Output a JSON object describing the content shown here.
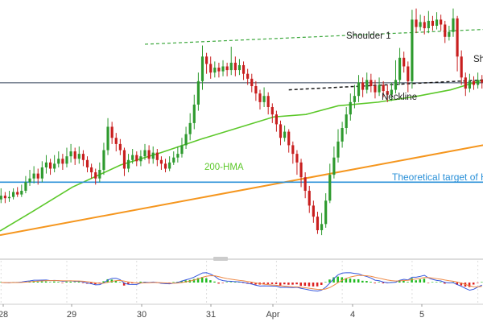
{
  "chart_data": {
    "type": "candlestick",
    "price_scale": {
      "min": 0,
      "max": 10
    },
    "x_labels": [
      "28",
      "29",
      "30",
      "31",
      "Apr",
      "4",
      "5"
    ],
    "annotations": {
      "shoulder1": "Shoulder 1",
      "shoulder2_partial": "Sh",
      "neckline": "Neckline",
      "hma_label": "200-HMA",
      "target_label": "Theoretical target of H"
    },
    "colors": {
      "up": "#2e9a2e",
      "down": "#c81e1e",
      "hma": "#5cc82a",
      "orange_trend": "#f5961e",
      "target_line": "#2a90d8",
      "neckline": "#1a1a1a",
      "shoulder_line": "#3da83d",
      "macd_line": "#3355dd",
      "signal_line": "#ee8844",
      "hist_pos": "#22bb22",
      "hist_neg": "#dd2222",
      "axis_text": "#444444",
      "grid": "#dddddd"
    },
    "candles": [
      [
        2.1,
        2.25,
        2.55,
        1.95
      ],
      [
        2.25,
        2.15,
        2.4,
        1.95
      ],
      [
        2.15,
        2.2,
        2.45,
        2.0
      ],
      [
        2.2,
        2.4,
        2.55,
        2.1
      ],
      [
        2.4,
        2.3,
        2.6,
        2.2
      ],
      [
        2.3,
        2.45,
        2.7,
        2.2
      ],
      [
        2.45,
        2.8,
        3.05,
        2.35
      ],
      [
        2.8,
        2.95,
        3.3,
        2.65
      ],
      [
        2.95,
        3.15,
        3.45,
        2.75
      ],
      [
        3.15,
        2.95,
        3.35,
        2.7
      ],
      [
        2.95,
        3.4,
        3.65,
        2.8
      ],
      [
        3.4,
        3.6,
        3.9,
        3.15
      ],
      [
        3.6,
        3.35,
        3.75,
        3.1
      ],
      [
        3.35,
        3.55,
        3.9,
        3.2
      ],
      [
        3.55,
        3.75,
        4.05,
        3.4
      ],
      [
        3.75,
        3.55,
        3.95,
        3.3
      ],
      [
        3.55,
        3.85,
        4.2,
        3.4
      ],
      [
        3.85,
        4.05,
        4.35,
        3.6
      ],
      [
        4.05,
        3.75,
        4.2,
        3.5
      ],
      [
        3.75,
        3.95,
        4.25,
        3.55
      ],
      [
        3.95,
        3.7,
        4.1,
        3.45
      ],
      [
        3.7,
        3.4,
        3.85,
        3.2
      ],
      [
        3.4,
        3.2,
        3.55,
        2.95
      ],
      [
        3.2,
        2.95,
        3.35,
        2.7
      ],
      [
        2.95,
        3.3,
        3.6,
        2.8
      ],
      [
        3.3,
        4.1,
        4.4,
        3.1
      ],
      [
        4.1,
        5.05,
        5.4,
        3.9
      ],
      [
        5.05,
        4.6,
        5.25,
        4.35
      ],
      [
        4.6,
        4.35,
        4.8,
        4.05
      ],
      [
        4.35,
        4.1,
        4.55,
        3.9
      ],
      [
        4.1,
        3.35,
        4.2,
        3.05
      ],
      [
        3.35,
        3.7,
        3.95,
        3.2
      ],
      [
        3.7,
        3.9,
        4.15,
        3.55
      ],
      [
        3.9,
        3.65,
        4.05,
        3.45
      ],
      [
        3.65,
        3.85,
        4.1,
        3.45
      ],
      [
        3.85,
        4.1,
        4.35,
        3.7
      ],
      [
        4.1,
        3.75,
        4.3,
        3.55
      ],
      [
        3.75,
        4.0,
        4.25,
        3.55
      ],
      [
        4.0,
        3.7,
        4.15,
        3.45
      ],
      [
        3.7,
        3.55,
        3.85,
        3.3
      ],
      [
        3.55,
        3.35,
        3.75,
        3.2
      ],
      [
        3.35,
        3.6,
        3.85,
        3.25
      ],
      [
        3.6,
        3.8,
        4.05,
        3.5
      ],
      [
        3.8,
        3.95,
        4.25,
        3.6
      ],
      [
        3.95,
        4.3,
        4.6,
        3.8
      ],
      [
        4.3,
        4.75,
        5.05,
        4.15
      ],
      [
        4.75,
        5.2,
        5.6,
        4.5
      ],
      [
        5.2,
        5.95,
        6.35,
        4.95
      ],
      [
        5.95,
        6.9,
        7.25,
        5.7
      ],
      [
        6.9,
        7.9,
        8.35,
        6.55
      ],
      [
        7.9,
        7.6,
        8.05,
        7.2
      ],
      [
        7.6,
        7.25,
        7.9,
        7.0
      ],
      [
        7.25,
        7.45,
        7.7,
        7.05
      ],
      [
        7.45,
        7.3,
        7.65,
        7.05
      ],
      [
        7.3,
        7.5,
        7.75,
        7.1
      ],
      [
        7.5,
        7.35,
        7.65,
        7.1
      ],
      [
        7.35,
        7.65,
        8.3,
        7.15
      ],
      [
        7.65,
        7.35,
        7.9,
        7.1
      ],
      [
        7.35,
        7.55,
        7.8,
        7.15
      ],
      [
        7.55,
        7.2,
        7.7,
        6.95
      ],
      [
        7.2,
        7.0,
        7.4,
        6.75
      ],
      [
        7.0,
        6.7,
        7.2,
        6.45
      ],
      [
        6.7,
        6.4,
        6.9,
        6.1
      ],
      [
        6.4,
        6.05,
        6.55,
        5.75
      ],
      [
        6.05,
        6.3,
        6.65,
        5.85
      ],
      [
        6.3,
        5.85,
        6.45,
        5.55
      ],
      [
        5.85,
        5.55,
        6.0,
        5.2
      ],
      [
        5.55,
        5.15,
        5.7,
        4.85
      ],
      [
        5.15,
        4.6,
        5.3,
        4.3
      ],
      [
        4.6,
        4.85,
        5.1,
        4.45
      ],
      [
        4.85,
        4.3,
        4.95,
        4.0
      ],
      [
        4.3,
        3.95,
        4.45,
        3.55
      ],
      [
        3.95,
        3.6,
        4.1,
        3.1
      ],
      [
        3.6,
        3.0,
        3.75,
        2.6
      ],
      [
        3.0,
        2.45,
        3.2,
        2.15
      ],
      [
        2.45,
        1.85,
        2.65,
        1.55
      ],
      [
        1.85,
        1.4,
        2.05,
        1.15
      ],
      [
        1.4,
        0.85,
        1.6,
        0.7
      ],
      [
        0.85,
        1.1,
        1.55,
        0.65
      ],
      [
        1.1,
        2.05,
        2.35,
        0.95
      ],
      [
        2.05,
        3.1,
        3.55,
        1.95
      ],
      [
        3.1,
        3.8,
        4.25,
        2.95
      ],
      [
        3.8,
        4.45,
        4.95,
        3.6
      ],
      [
        4.45,
        5.0,
        5.25,
        4.2
      ],
      [
        5.0,
        5.55,
        5.85,
        4.75
      ],
      [
        5.55,
        6.05,
        6.4,
        5.3
      ],
      [
        6.05,
        6.3,
        6.75,
        5.8
      ],
      [
        6.3,
        6.85,
        7.15,
        6.05
      ],
      [
        6.85,
        6.55,
        7.05,
        6.25
      ],
      [
        6.55,
        6.95,
        7.25,
        6.4
      ],
      [
        6.95,
        6.7,
        7.2,
        6.45
      ],
      [
        6.7,
        6.45,
        6.95,
        6.2
      ],
      [
        6.45,
        6.75,
        7.05,
        6.3
      ],
      [
        6.75,
        6.5,
        6.9,
        6.25
      ],
      [
        6.5,
        6.35,
        6.75,
        6.05
      ],
      [
        6.35,
        6.55,
        6.85,
        6.1
      ],
      [
        6.55,
        6.95,
        7.75,
        6.4
      ],
      [
        6.95,
        7.85,
        8.25,
        6.75
      ],
      [
        7.85,
        7.5,
        8.1,
        7.25
      ],
      [
        7.5,
        6.9,
        7.7,
        6.45
      ],
      [
        6.9,
        9.4,
        9.8,
        6.6
      ],
      [
        9.4,
        9.1,
        9.85,
        8.85
      ],
      [
        9.1,
        9.3,
        9.6,
        8.95
      ],
      [
        9.3,
        9.05,
        9.55,
        8.8
      ],
      [
        9.05,
        9.35,
        9.75,
        8.85
      ],
      [
        9.35,
        9.15,
        9.55,
        8.95
      ],
      [
        9.15,
        9.4,
        9.7,
        9.0
      ],
      [
        9.4,
        9.2,
        9.6,
        8.95
      ],
      [
        9.2,
        8.7,
        9.35,
        8.45
      ],
      [
        8.7,
        8.9,
        9.15,
        8.55
      ],
      [
        8.9,
        9.45,
        9.85,
        8.7
      ],
      [
        9.45,
        7.9,
        9.55,
        7.3
      ],
      [
        7.9,
        7.05,
        8.15,
        6.75
      ],
      [
        7.05,
        6.6,
        7.25,
        6.3
      ],
      [
        6.6,
        6.9,
        7.2,
        6.45
      ],
      [
        6.9,
        6.75,
        7.1,
        6.55
      ],
      [
        6.75,
        6.95,
        7.25,
        6.6
      ],
      [
        6.95,
        6.85,
        7.15,
        6.6
      ]
    ]
  }
}
